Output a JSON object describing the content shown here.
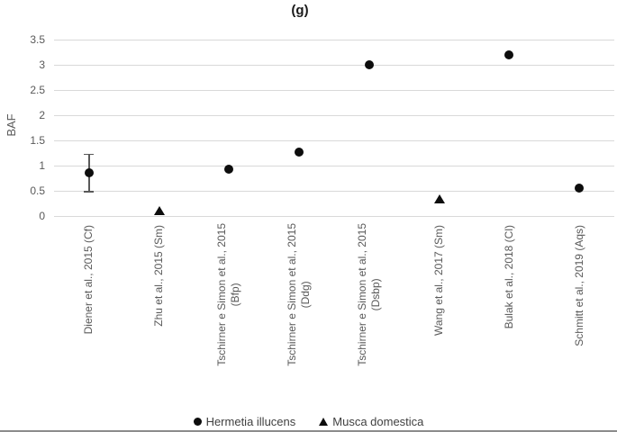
{
  "title": "(g)",
  "y_axis": {
    "label": "BAF",
    "ticks": [
      "3.5",
      "3",
      "2.5",
      "2",
      "1.5",
      "1",
      "0.5",
      "0"
    ]
  },
  "legend": {
    "items": [
      {
        "marker": "circle",
        "label": "Hermetia illucens"
      },
      {
        "marker": "triangle",
        "label": "Musca domestica"
      }
    ]
  },
  "colors": {
    "marker": "#0d0d0d",
    "gridline": "#d9d9d9",
    "axis_text": "#595959",
    "legend_text": "#404040",
    "error_bar": "#595959",
    "figure_border": "#8c8c8c"
  },
  "chart_data": {
    "type": "scatter",
    "title": "(g)",
    "xlabel": "",
    "ylabel": "BAF",
    "ylim": [
      0,
      3.5
    ],
    "ytick_interval": 0.5,
    "grid": true,
    "legend_position": "bottom",
    "categories": [
      "Diener et al., 2015 (Cf)",
      "Zhu et al., 2015 (Sm)",
      "Tschirner e Simon et al., 2015\n(Bfp)",
      "Tschirner e Simon et al., 2015\n(Ddg)",
      "Tschirner e Simon et al., 2015\n(Dsbp)",
      "Wang et al., 2017 (Sm)",
      "Bulak et al., 2018 (Cl)",
      "Schmitt et al., 2019 (Aqs)"
    ],
    "series": [
      {
        "name": "Hermetia illucens",
        "marker": "circle",
        "color": "#0d0d0d",
        "points": [
          {
            "category_index": 0,
            "value": 0.85,
            "error": 0.37
          },
          {
            "category_index": 2,
            "value": 0.93
          },
          {
            "category_index": 3,
            "value": 1.26
          },
          {
            "category_index": 4,
            "value": 3.0
          },
          {
            "category_index": 6,
            "value": 3.2
          },
          {
            "category_index": 7,
            "value": 0.55
          }
        ]
      },
      {
        "name": "Musca domestica",
        "marker": "triangle",
        "color": "#0d0d0d",
        "points": [
          {
            "category_index": 1,
            "value": 0.1
          },
          {
            "category_index": 5,
            "value": 0.34
          }
        ]
      }
    ]
  }
}
